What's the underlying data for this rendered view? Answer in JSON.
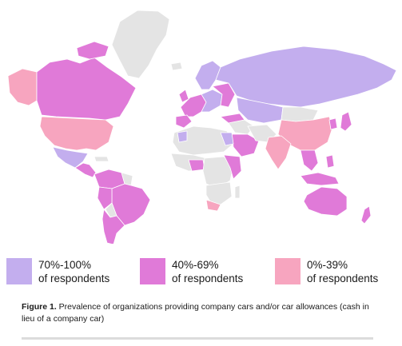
{
  "colors": {
    "high": "#c3aeee",
    "mid": "#e07ad8",
    "low": "#f7a5bf",
    "nodata": "#e4e4e4"
  },
  "legend": [
    {
      "range": "70%-100%",
      "label": "of respondents",
      "color": "#c3aeee"
    },
    {
      "range": "40%-69%",
      "label": "of respondents",
      "color": "#e07ad8"
    },
    {
      "range": "0%-39%",
      "label": "of respondents",
      "color": "#f7a5bf"
    }
  ],
  "caption": {
    "figure": "Figure 1.",
    "text": " Prevalence of organizations providing company cars and/or car allowances (cash in lieu of a company car)"
  }
}
